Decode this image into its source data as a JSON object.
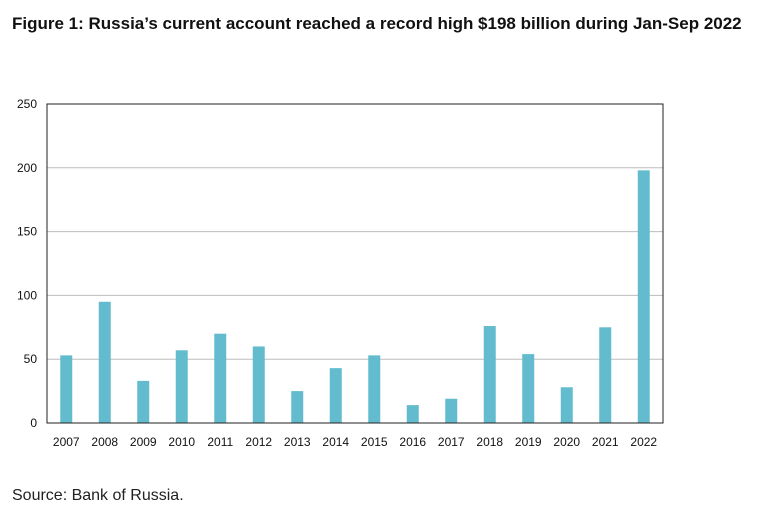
{
  "title": "Figure 1: Russia’s current account reached a record high $198 billion during Jan-Sep 2022",
  "source": "Source: Bank of Russia.",
  "colors": {
    "bar": "#62bccd",
    "grid": "#bdbdbd",
    "axis": "#222222"
  },
  "chart_data": {
    "type": "bar",
    "title": "Figure 1: Russia’s current account reached a record high $198 billion during Jan-Sep 2022",
    "xlabel": "",
    "ylabel": "",
    "ylim": [
      0,
      250
    ],
    "yticks": [
      0,
      50,
      100,
      150,
      200,
      250
    ],
    "grid": true,
    "categories": [
      "2007",
      "2008",
      "2009",
      "2010",
      "2011",
      "2012",
      "2013",
      "2014",
      "2015",
      "2016",
      "2017",
      "2018",
      "2019",
      "2020",
      "2021",
      "2022"
    ],
    "values": [
      53,
      95,
      33,
      57,
      70,
      60,
      25,
      43,
      53,
      14,
      19,
      76,
      54,
      28,
      75,
      198
    ]
  }
}
